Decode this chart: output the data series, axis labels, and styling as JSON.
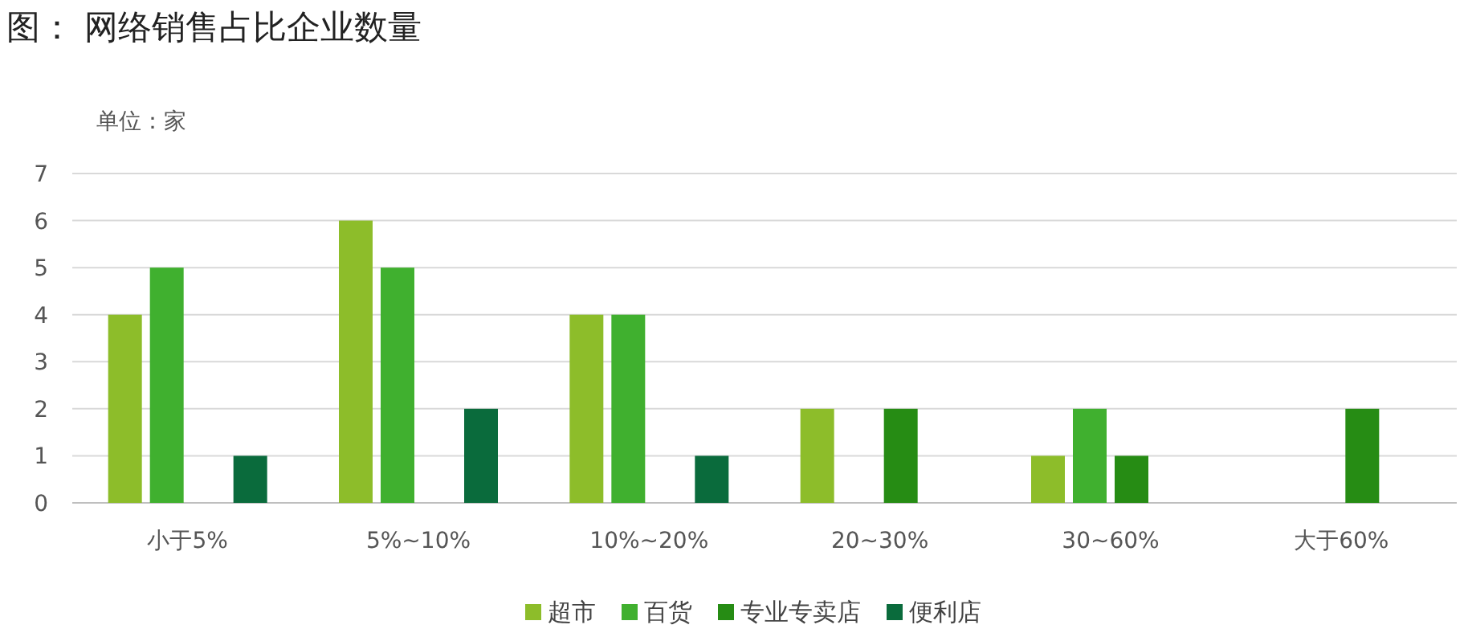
{
  "chart_data": {
    "type": "bar",
    "title": "图： 网络销售占比企业数量",
    "ylabel": "单位：家",
    "categories": [
      "小于5%",
      "5%~10%",
      "10%~20%",
      "20~30%",
      "30~60%",
      "大于60%"
    ],
    "series": [
      {
        "name": "超市",
        "color": "#8dbd2a",
        "values": [
          4,
          6,
          4,
          2,
          1,
          null
        ]
      },
      {
        "name": "百货",
        "color": "#40b02f",
        "values": [
          5,
          5,
          4,
          null,
          2,
          null
        ]
      },
      {
        "name": "专业专卖店",
        "color": "#268c14",
        "values": [
          null,
          null,
          null,
          2,
          1,
          2
        ]
      },
      {
        "name": "便利店",
        "color": "#0a6b3c",
        "values": [
          1,
          2,
          1,
          null,
          null,
          null
        ]
      }
    ],
    "ylim": [
      0,
      7
    ],
    "yticks": [
      0,
      1,
      2,
      3,
      4,
      5,
      6,
      7
    ],
    "grid": "y",
    "legend": "bottom"
  }
}
